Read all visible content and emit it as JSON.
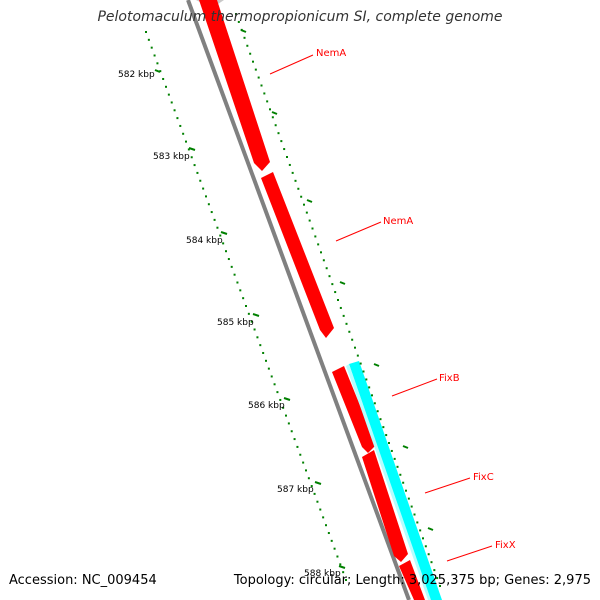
{
  "title": "Pelotomaculum thermopropionicum SI, complete genome",
  "footer": {
    "accession": "Accession: NC_009454",
    "topology": "Topology: circular; Length: 3,025,375 bp; Genes: 2,975"
  },
  "ticks": [
    "582 kbp",
    "583 kbp",
    "584 kbp",
    "585 kbp",
    "586 kbp",
    "587 kbp",
    "588 kbp"
  ],
  "genes": [
    {
      "label": "NemA",
      "color": "#ff0000"
    },
    {
      "label": "NemA",
      "color": "#ff0000"
    },
    {
      "label": "FixB",
      "color": "#ff0000"
    },
    {
      "label": "FixC",
      "color": "#ff0000"
    },
    {
      "label": "FixX",
      "color": "#ff0000"
    }
  ],
  "colors": {
    "backbone": "#808080",
    "forward_genes": "#ff0000",
    "cds_track": "#00ffff",
    "ruler": "#008000",
    "label": "#ff0000"
  }
}
